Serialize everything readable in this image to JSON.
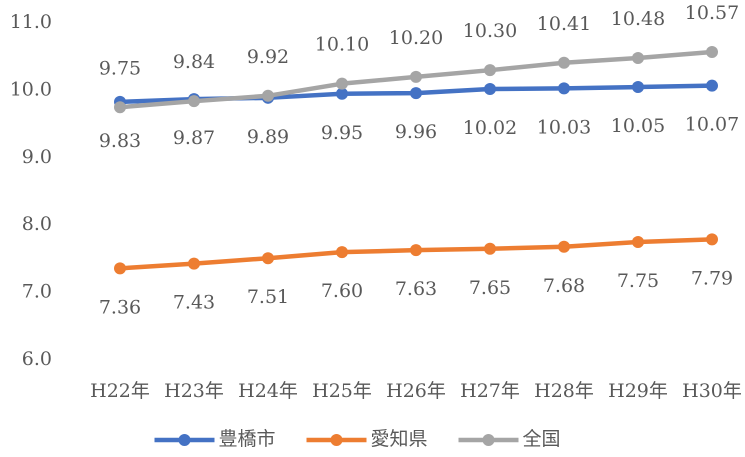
{
  "chart_data": {
    "type": "line",
    "categories": [
      "H22年",
      "H23年",
      "H24年",
      "H25年",
      "H26年",
      "H27年",
      "H28年",
      "H29年",
      "H30年"
    ],
    "series": [
      {
        "name": "豊橋市",
        "color": "#4472c4",
        "values": [
          9.83,
          9.87,
          9.89,
          9.95,
          9.96,
          10.02,
          10.03,
          10.05,
          10.07
        ],
        "value_labels": [
          "9.83",
          "9.87",
          "9.89",
          "9.95",
          "9.96",
          "10.02",
          "10.03",
          "10.05",
          "10.07"
        ]
      },
      {
        "name": "愛知県",
        "color": "#ed7d31",
        "values": [
          7.36,
          7.43,
          7.51,
          7.6,
          7.63,
          7.65,
          7.68,
          7.75,
          7.79
        ],
        "value_labels": [
          "7.36",
          "7.43",
          "7.51",
          "7.60",
          "7.63",
          "7.65",
          "7.68",
          "7.75",
          "7.79"
        ]
      },
      {
        "name": "全国",
        "color": "#a5a5a5",
        "values": [
          9.75,
          9.84,
          9.92,
          10.1,
          10.2,
          10.3,
          10.41,
          10.48,
          10.57
        ],
        "value_labels": [
          "9.75",
          "9.84",
          "9.92",
          "10.10",
          "10.20",
          "10.30",
          "10.41",
          "10.48",
          "10.57"
        ]
      }
    ],
    "ylim": [
      6,
      11
    ],
    "yticks": [
      {
        "value": 6,
        "label": "6.0"
      },
      {
        "value": 7,
        "label": "7.0"
      },
      {
        "value": 8,
        "label": "8.0"
      },
      {
        "value": 9,
        "label": "9.0"
      },
      {
        "value": 10,
        "label": "10.0"
      },
      {
        "value": 11,
        "label": "11.0"
      }
    ],
    "grid": false,
    "legend": "bottom"
  }
}
